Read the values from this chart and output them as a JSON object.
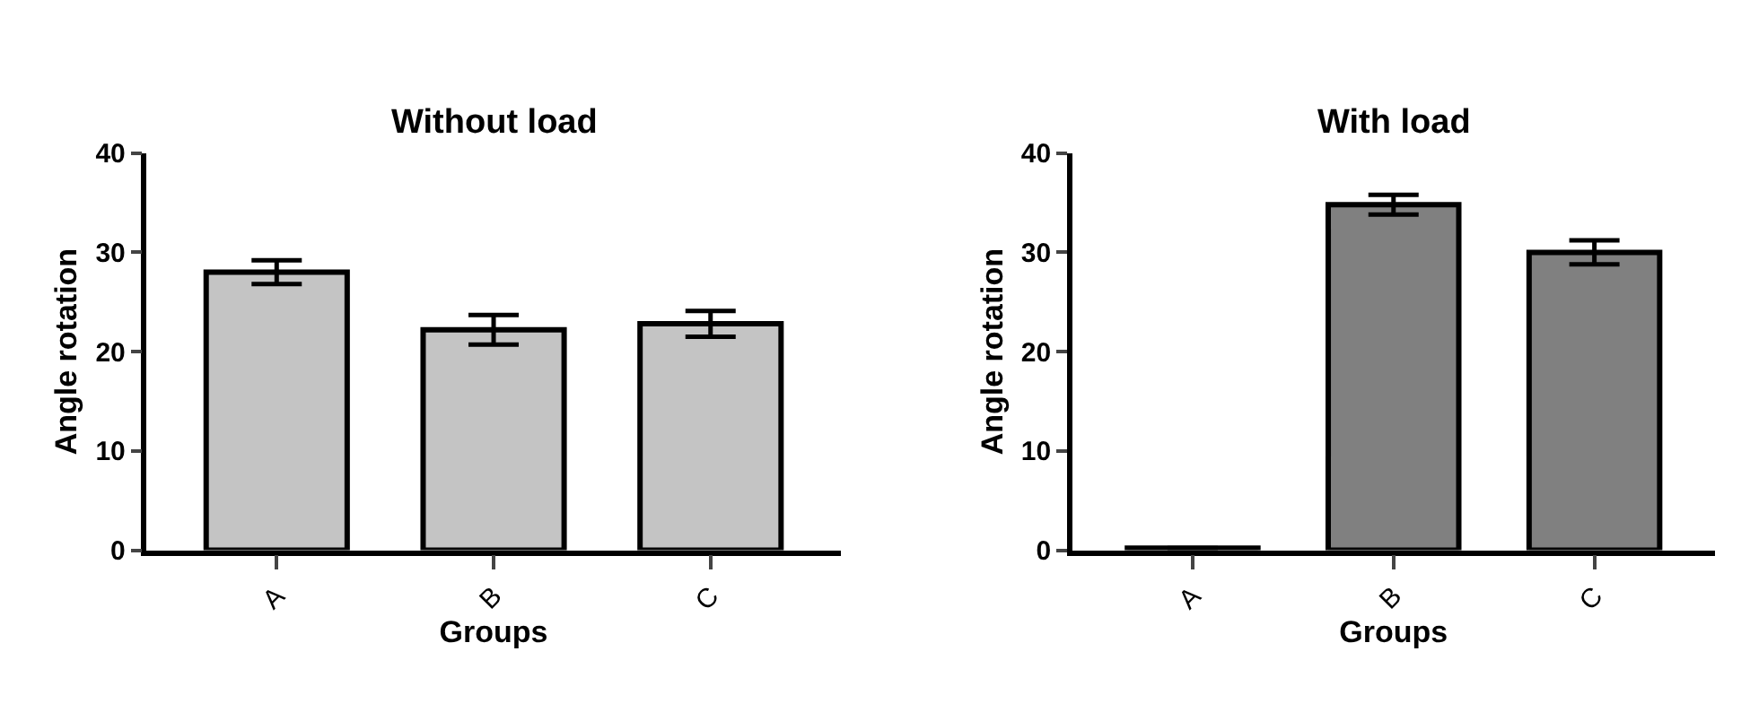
{
  "chart_data": [
    {
      "type": "bar",
      "title": "Without load",
      "xlabel": "Groups",
      "ylabel": "Angle rotation",
      "categories": [
        "A",
        "B",
        "C"
      ],
      "series": [
        {
          "color": "#c4c4c4",
          "values": [
            28,
            22.2,
            22.8
          ],
          "errors": [
            1.2,
            1.5,
            1.3
          ]
        }
      ],
      "ylim": [
        0,
        40
      ],
      "yticks": [
        0,
        10,
        20,
        30,
        40
      ]
    },
    {
      "type": "bar",
      "title": "With load",
      "xlabel": "Groups",
      "ylabel": "Angle rotation",
      "categories": [
        "A",
        "B",
        "C"
      ],
      "series": [
        {
          "color": "#808080",
          "values": [
            0.2,
            34.8,
            30
          ],
          "errors": [
            null,
            1,
            1.2
          ]
        }
      ],
      "ylim": [
        0,
        40
      ],
      "yticks": [
        0,
        10,
        20,
        30,
        40
      ]
    }
  ]
}
